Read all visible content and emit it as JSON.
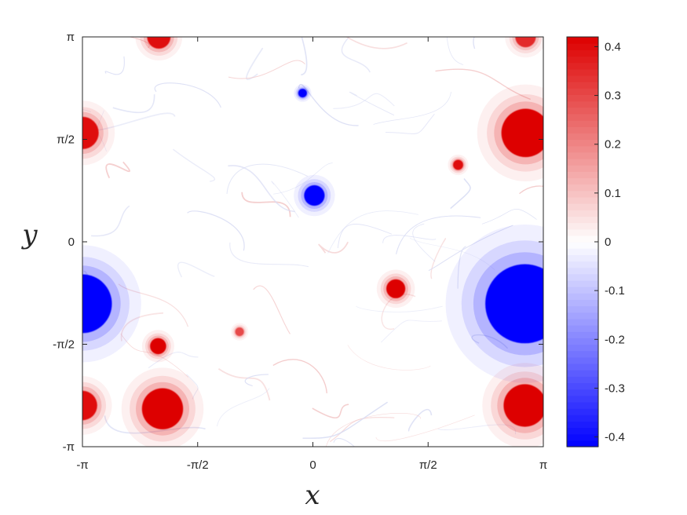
{
  "chart_data": {
    "type": "heatmap",
    "xlabel": "x",
    "ylabel": "y",
    "xlim": [
      -3.14159,
      3.14159
    ],
    "ylim": [
      -3.14159,
      3.14159
    ],
    "x_ticks": [
      {
        "value": -3.14159,
        "label": "-π"
      },
      {
        "value": -1.5708,
        "label": "-π/2"
      },
      {
        "value": 0,
        "label": "0"
      },
      {
        "value": 1.5708,
        "label": "π/2"
      },
      {
        "value": 3.14159,
        "label": "π"
      }
    ],
    "y_ticks": [
      {
        "value": -3.14159,
        "label": "-π"
      },
      {
        "value": -1.5708,
        "label": "-π/2"
      },
      {
        "value": 0,
        "label": "0"
      },
      {
        "value": 1.5708,
        "label": "π/2"
      },
      {
        "value": 3.14159,
        "label": "π"
      }
    ],
    "colorbar": {
      "range": [
        -0.42,
        0.42
      ],
      "ticks": [
        -0.4,
        -0.3,
        -0.2,
        -0.1,
        0,
        0.1,
        0.2,
        0.3,
        0.4
      ],
      "tick_labels": [
        "-0.4",
        "-0.3",
        "-0.2",
        "-0.1",
        "0",
        "0.1",
        "0.2",
        "0.3",
        "0.4"
      ],
      "colormap": [
        "#0000ff",
        "#ffffff",
        "#dd0000"
      ]
    },
    "grid": false,
    "vortices": [
      {
        "x": -2.1,
        "y": 3.14,
        "r": 0.16,
        "value": 0.4
      },
      {
        "x": 2.9,
        "y": 3.14,
        "r": 0.14,
        "value": 0.35
      },
      {
        "x": -3.14,
        "y": 1.67,
        "r": 0.22,
        "value": 0.4
      },
      {
        "x": 2.9,
        "y": 1.67,
        "r": 0.33,
        "value": 0.42
      },
      {
        "x": -0.14,
        "y": 2.28,
        "r": 0.06,
        "value": -0.42
      },
      {
        "x": 1.98,
        "y": 1.18,
        "r": 0.07,
        "value": 0.4
      },
      {
        "x": 0.02,
        "y": 0.71,
        "r": 0.14,
        "value": -0.42
      },
      {
        "x": 1.13,
        "y": -0.72,
        "r": 0.13,
        "value": 0.42
      },
      {
        "x": -3.14,
        "y": -0.95,
        "r": 0.4,
        "value": -0.42
      },
      {
        "x": 2.89,
        "y": -0.95,
        "r": 0.54,
        "value": -0.42
      },
      {
        "x": -2.11,
        "y": -1.6,
        "r": 0.11,
        "value": 0.42
      },
      {
        "x": -1.0,
        "y": -1.38,
        "r": 0.06,
        "value": 0.3
      },
      {
        "x": -3.14,
        "y": -2.51,
        "r": 0.2,
        "value": 0.4
      },
      {
        "x": -2.05,
        "y": -2.56,
        "r": 0.28,
        "value": 0.42
      },
      {
        "x": 2.89,
        "y": -2.51,
        "r": 0.29,
        "value": 0.42
      }
    ]
  }
}
